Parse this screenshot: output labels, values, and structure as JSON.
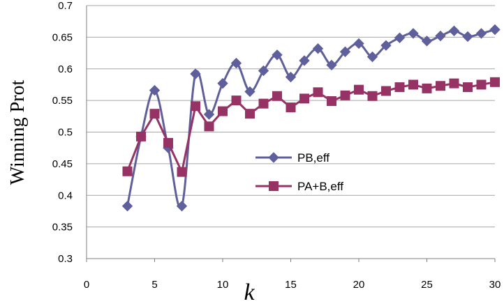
{
  "chart_data": {
    "type": "line",
    "xlabel": "k",
    "ylabel": "Winning Prot",
    "xlim": [
      0,
      30
    ],
    "ylim": [
      0.3,
      0.7
    ],
    "xticks": [
      0,
      5,
      10,
      15,
      20,
      25,
      30
    ],
    "yticks": [
      0.3,
      0.35,
      0.4,
      0.45,
      0.5,
      0.55,
      0.6,
      0.65,
      0.7
    ],
    "ytick_labels": [
      "0.3",
      "0.35",
      "0.4",
      "0.45",
      "0.5",
      "0.55",
      "0.6",
      "0.65",
      "0.7"
    ],
    "grid": "horizontal",
    "legend_position": "center-right",
    "series": [
      {
        "name": "PB,eff",
        "color": "#5f5f9c",
        "marker": "diamond",
        "x": [
          3,
          4,
          5,
          6,
          7,
          8,
          9,
          10,
          11,
          12,
          13,
          14,
          15,
          16,
          17,
          18,
          19,
          20,
          21,
          22,
          23,
          24,
          25,
          26,
          27,
          28,
          29,
          30
        ],
        "values": [
          0.383,
          0.493,
          0.566,
          0.475,
          0.383,
          0.592,
          0.528,
          0.577,
          0.609,
          0.564,
          0.597,
          0.622,
          0.587,
          0.613,
          0.632,
          0.606,
          0.627,
          0.64,
          0.619,
          0.637,
          0.649,
          0.656,
          0.644,
          0.652,
          0.66,
          0.651,
          0.656,
          0.662
        ]
      },
      {
        "name": "PA+B,eff",
        "color": "#963264",
        "marker": "square",
        "x": [
          3,
          4,
          5,
          6,
          7,
          8,
          9,
          10,
          11,
          12,
          13,
          14,
          15,
          16,
          17,
          18,
          19,
          20,
          21,
          22,
          23,
          24,
          25,
          26,
          27,
          28,
          29,
          30
        ],
        "values": [
          0.438,
          0.493,
          0.529,
          0.483,
          0.437,
          0.541,
          0.509,
          0.533,
          0.55,
          0.529,
          0.545,
          0.557,
          0.539,
          0.553,
          0.563,
          0.549,
          0.558,
          0.567,
          0.557,
          0.565,
          0.571,
          0.575,
          0.569,
          0.573,
          0.577,
          0.571,
          0.575,
          0.579
        ]
      }
    ]
  }
}
